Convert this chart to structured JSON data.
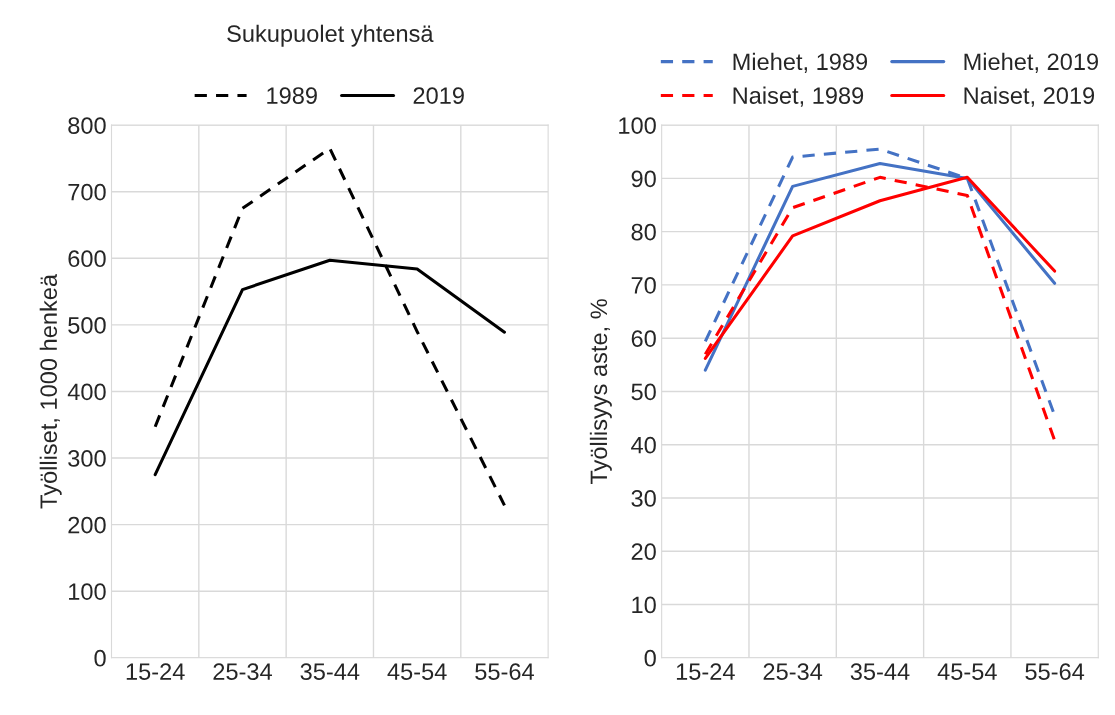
{
  "chart_data": [
    {
      "type": "line",
      "title": "Sukupuolet yhtensä",
      "ylabel": "Työlliset, 1000 henkeä",
      "categories": [
        "15-24",
        "25-34",
        "35-44",
        "45-54",
        "55-64"
      ],
      "ylim": [
        0,
        800
      ],
      "yticks": [
        0,
        100,
        200,
        300,
        400,
        500,
        600,
        700,
        800
      ],
      "grid": true,
      "legend": "top",
      "series": [
        {
          "name": "1989",
          "color": "#000000",
          "line_style": "dashed",
          "values": [
            347,
            675,
            765,
            490,
            229
          ]
        },
        {
          "name": "2019",
          "color": "#000000",
          "line_style": "solid",
          "values": [
            275,
            553,
            597,
            584,
            489
          ]
        }
      ]
    },
    {
      "type": "line",
      "ylabel": "Työllisyys aste, %",
      "categories": [
        "15-24",
        "25-34",
        "35-44",
        "45-54",
        "55-64"
      ],
      "ylim": [
        0,
        100
      ],
      "yticks": [
        0,
        10,
        20,
        30,
        40,
        50,
        60,
        70,
        80,
        90,
        100
      ],
      "grid": true,
      "legend": "top",
      "series": [
        {
          "name": "Miehet, 1989",
          "color": "#4472c4",
          "line_style": "dashed",
          "values": [
            59.4,
            94,
            95.5,
            90,
            45.5
          ]
        },
        {
          "name": "Miehet, 2019",
          "color": "#4472c4",
          "line_style": "solid",
          "values": [
            54,
            88.5,
            92.8,
            90,
            70.3
          ]
        },
        {
          "name": "Naiset, 1989",
          "color": "#ff0000",
          "line_style": "dashed",
          "values": [
            57,
            84.5,
            90.2,
            86.8,
            40.8
          ]
        },
        {
          "name": "Naiset, 2019",
          "color": "#ff0000",
          "line_style": "solid",
          "values": [
            56.2,
            79.2,
            85.8,
            90.2,
            72.6
          ]
        }
      ]
    }
  ]
}
